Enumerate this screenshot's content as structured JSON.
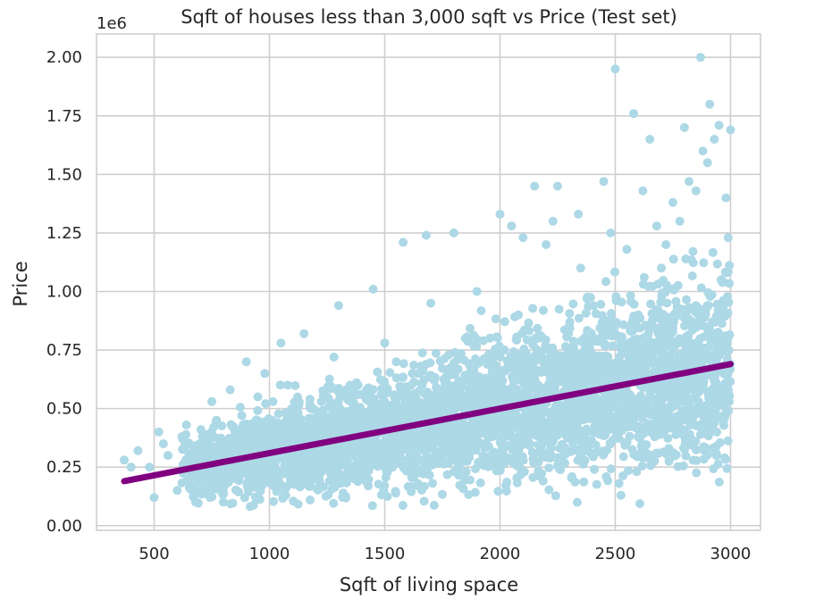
{
  "chart_data": {
    "type": "scatter",
    "title": "Sqft of houses less than 3,000 sqft vs Price (Test set)",
    "xlabel": "Sqft of living space",
    "ylabel": "Price",
    "y_offset_label": "1e6",
    "xlim": [
      250,
      3130
    ],
    "ylim": [
      -0.02,
      2.1
    ],
    "xticks": [
      500,
      1000,
      1500,
      2000,
      2500,
      3000
    ],
    "xtick_labels": [
      "500",
      "1000",
      "1500",
      "2000",
      "2500",
      "3000"
    ],
    "yticks": [
      0,
      0.25,
      0.5,
      0.75,
      1.0,
      1.25,
      1.5,
      1.75,
      2.0
    ],
    "ytick_labels": [
      "0.00",
      "0.25",
      "0.50",
      "0.75",
      "1.00",
      "1.25",
      "1.50",
      "1.75",
      "2.00"
    ],
    "grid": true,
    "colors": {
      "points": "#add8e6",
      "line": "#800080",
      "grid": "#cfcfcf",
      "text": "#262626"
    },
    "series": [
      {
        "kind": "scatter",
        "color": "#add8e6",
        "x": [
          370,
          400,
          430,
          480,
          500,
          520,
          540,
          560,
          600,
          620,
          640,
          650,
          680,
          700,
          720,
          750,
          770,
          800,
          830,
          850,
          880,
          900,
          920,
          950,
          980,
          1000,
          1020,
          1050,
          1080,
          1100,
          1150,
          1180,
          1200,
          1250,
          1280,
          1300,
          1350,
          1400,
          1450,
          1500,
          1550,
          1580,
          1600,
          1620,
          1680,
          1700,
          1750,
          1800,
          1850,
          1900,
          1950,
          2000,
          2020,
          2050,
          2080,
          2100,
          2150,
          2200,
          2230,
          2250,
          2300,
          2340,
          2350,
          2400,
          2450,
          2480,
          2500,
          2520,
          2550,
          2580,
          2600,
          2620,
          2650,
          2680,
          2700,
          2720,
          2750,
          2780,
          2800,
          2820,
          2850,
          2870,
          2880,
          2900,
          2910,
          2930,
          2950,
          2980,
          3000,
          2990
        ],
        "y": [
          0.28,
          0.25,
          0.32,
          0.25,
          0.12,
          0.4,
          0.35,
          0.3,
          0.15,
          0.38,
          0.43,
          0.2,
          0.1,
          0.35,
          0.3,
          0.53,
          0.45,
          0.1,
          0.58,
          0.4,
          0.47,
          0.7,
          0.25,
          0.55,
          0.65,
          0.42,
          0.35,
          0.78,
          0.6,
          0.45,
          0.82,
          0.5,
          0.38,
          0.55,
          0.72,
          0.94,
          0.6,
          0.45,
          1.01,
          0.78,
          0.7,
          1.21,
          0.5,
          0.65,
          1.24,
          0.95,
          0.55,
          1.25,
          0.8,
          1.0,
          0.6,
          1.33,
          0.75,
          1.28,
          0.9,
          1.23,
          1.45,
          1.2,
          1.3,
          1.45,
          0.85,
          1.33,
          1.1,
          0.65,
          1.47,
          1.25,
          1.95,
          0.7,
          1.18,
          1.76,
          0.9,
          1.43,
          1.65,
          1.28,
          1.1,
          1.2,
          1.38,
          1.3,
          1.7,
          1.47,
          1.43,
          2.0,
          1.6,
          1.55,
          1.8,
          1.65,
          1.71,
          1.4,
          1.69,
          1.23
        ]
      },
      {
        "kind": "line",
        "color": "#800080",
        "x": [
          370,
          3000
        ],
        "y": [
          0.19,
          0.69
        ]
      }
    ]
  }
}
